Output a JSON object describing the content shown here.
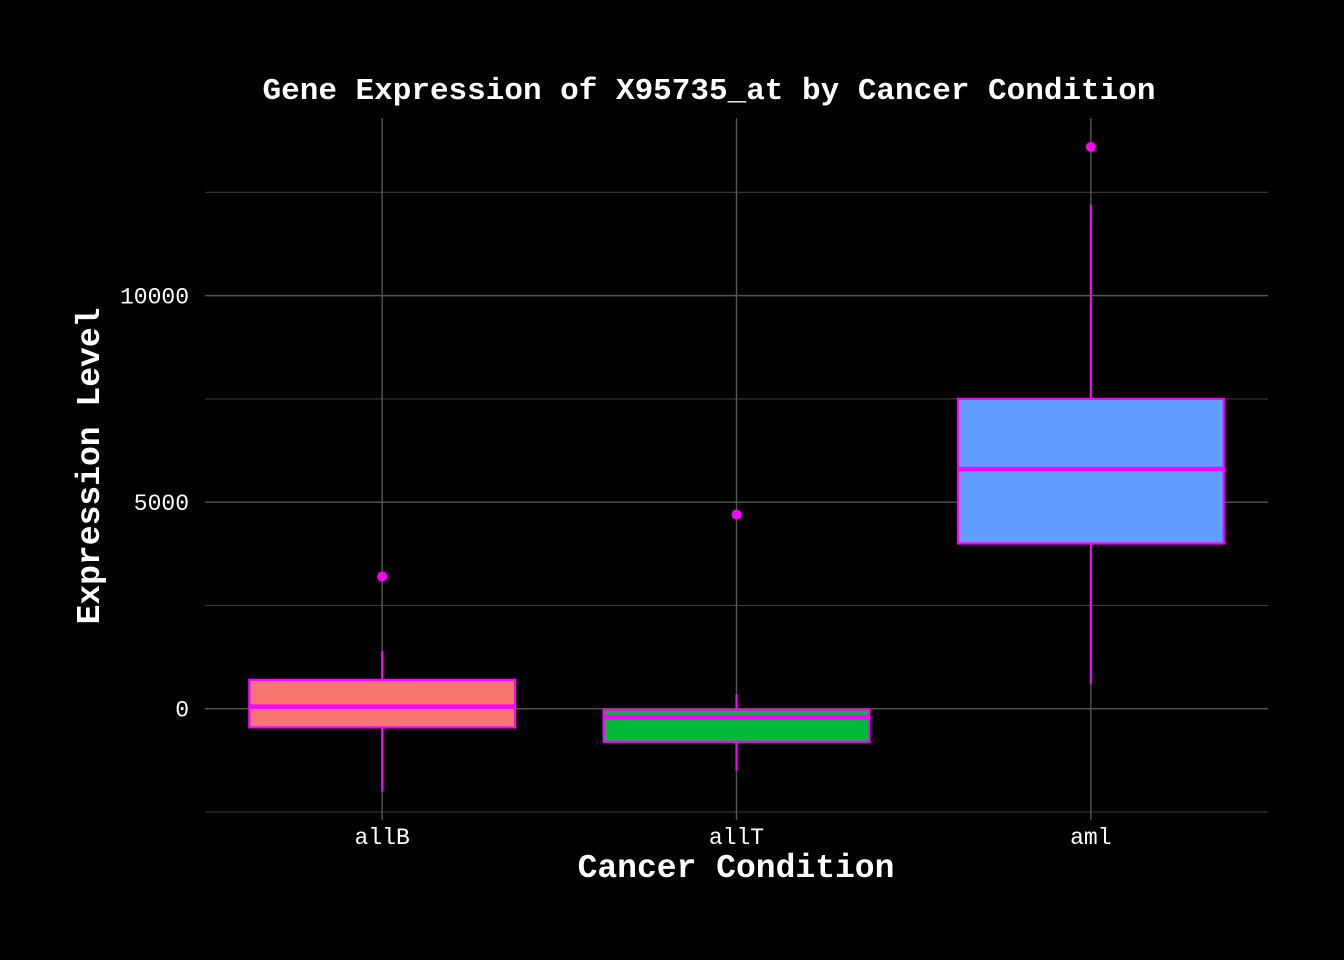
{
  "chart_data": {
    "type": "box",
    "title": "Gene Expression of X95735_at by Cancer Condition",
    "xlabel": "Cancer Condition",
    "ylabel": "Expression Level",
    "categories": [
      "allB",
      "allT",
      "aml"
    ],
    "ylim": [
      -2500,
      14300
    ],
    "yticks": [
      0,
      5000,
      10000
    ],
    "ytick_labels": [
      "0",
      "5000",
      "10000"
    ],
    "grid": true,
    "legend": "none",
    "outline_color": "#ff00ff",
    "boxes": [
      {
        "category": "allB",
        "fill": "#f8766d",
        "whisker_low": -2000,
        "q1": -450,
        "median": 50,
        "q3": 700,
        "whisker_high": 1400,
        "outliers": [
          3200
        ]
      },
      {
        "category": "allT",
        "fill": "#00ba38",
        "whisker_low": -1500,
        "q1": -800,
        "median": -200,
        "q3": -30,
        "whisker_high": 350,
        "outliers": [
          4700
        ]
      },
      {
        "category": "aml",
        "fill": "#619cff",
        "whisker_low": 600,
        "q1": 4000,
        "median": 5800,
        "q3": 7500,
        "whisker_high": 12200,
        "outliers": [
          13600
        ]
      }
    ]
  }
}
